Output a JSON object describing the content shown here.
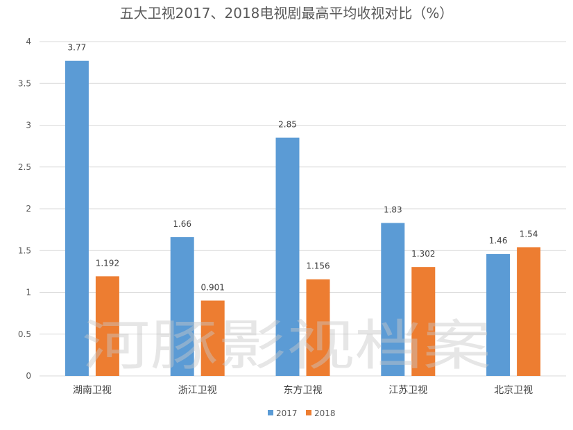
{
  "chart_data": {
    "type": "bar",
    "title": "五大卫视2017、2018电视剧最高平均收视对比（%）",
    "categories": [
      "湖南卫视",
      "浙江卫视",
      "东方卫视",
      "江苏卫视",
      "北京卫视"
    ],
    "series": [
      {
        "name": "2017",
        "color": "#5b9bd5",
        "values": [
          3.77,
          1.66,
          2.85,
          1.83,
          1.46
        ],
        "labels": [
          "3.77",
          "1.66",
          "2.85",
          "1.83",
          "1.46"
        ]
      },
      {
        "name": "2018",
        "color": "#ed7d31",
        "values": [
          1.192,
          0.901,
          1.156,
          1.302,
          1.54
        ],
        "labels": [
          "1.192",
          "0.901",
          "1.156",
          "1.302",
          "1.54"
        ]
      }
    ],
    "ylim": [
      0,
      4
    ],
    "yticks": [
      0,
      0.5,
      1,
      1.5,
      2,
      2.5,
      3,
      3.5,
      4
    ],
    "ytick_labels": [
      "0",
      "0.5",
      "1",
      "1.5",
      "2",
      "2.5",
      "3",
      "3.5",
      "4"
    ],
    "grid": true,
    "legend_position": "bottom"
  },
  "watermark": {
    "text": "河豚影视档案"
  }
}
